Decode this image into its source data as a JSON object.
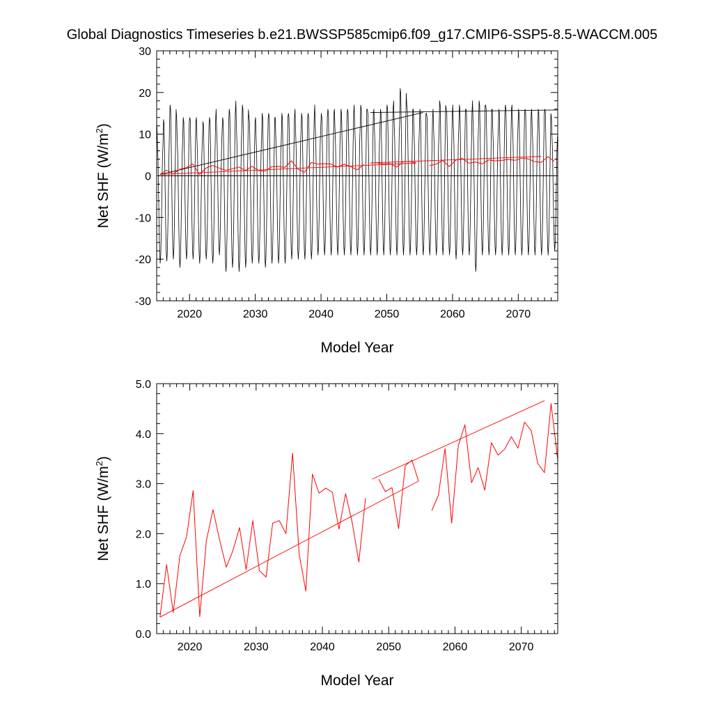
{
  "figure_title": "Global Diagnostics Timeseries b.e21.BWSSP585cmip6.f09_g17.CMIP6-SSP5-8.5-WACCM.005",
  "colors": {
    "monthly": "#000000",
    "annual": "#ff0000",
    "trend": "#ff0000",
    "zero_line": "#000000"
  },
  "chart_data": [
    {
      "type": "line",
      "xlabel": "Model Year",
      "ylabel": "Net SHF (W/m",
      "ylabel_sup": "2",
      "ylabel_close": ")",
      "xlim": [
        2015,
        2076
      ],
      "ylim": [
        -30,
        30
      ],
      "xticks": [
        2020,
        2030,
        2040,
        2050,
        2060,
        2070
      ],
      "yticks": [
        -30,
        -20,
        -10,
        0,
        10,
        20,
        30
      ],
      "ytick_labels": [
        "-30",
        "-20",
        "-10",
        "0",
        "10",
        "20",
        "30"
      ],
      "reference_line": {
        "y": 0
      },
      "monthly_series": {
        "start_year": 2015,
        "n_years": 61,
        "annual_max": [
          12,
          13.5,
          17,
          14,
          14,
          14,
          14,
          13,
          14,
          16,
          14,
          16,
          18,
          17,
          14,
          14,
          15,
          15,
          14,
          15,
          15,
          16,
          15,
          15,
          17,
          15,
          16,
          16,
          16,
          16,
          17,
          17,
          16,
          16,
          16,
          17,
          18,
          21,
          17,
          16,
          16,
          15,
          16,
          18,
          16,
          17,
          17,
          16,
          18,
          18,
          17,
          16,
          16,
          17,
          17,
          16,
          16,
          16,
          16,
          16,
          14
        ],
        "annual_min": [
          -21,
          -20.5,
          -20,
          -22,
          -20,
          -20,
          -21,
          -20,
          -21,
          -19,
          -23,
          -22,
          -23,
          -22,
          -21,
          -21,
          -22,
          -21,
          -21,
          -21,
          -20,
          -20,
          -20,
          -20,
          -19,
          -19,
          -19,
          -19,
          -19,
          -19,
          -19,
          -19,
          -19,
          -19,
          -19,
          -19,
          -19,
          -19,
          -19,
          -19,
          -19,
          -19,
          -19,
          -19,
          -19,
          -20,
          -19,
          -19,
          -23,
          -19,
          -19,
          -19,
          -19,
          -19,
          -19,
          -19,
          -19,
          -19,
          -19,
          -19,
          -18
        ]
      },
      "annual_series": {
        "x": [
          2015.5,
          2016.5,
          2017.5,
          2018.5,
          2019.5,
          2020.5,
          2021.5,
          2022.5,
          2023.5,
          2024.5,
          2025.5,
          2026.5,
          2027.5,
          2028.5,
          2029.5,
          2030.5,
          2031.5,
          2032.5,
          2033.5,
          2034.5,
          2035.5,
          2036.5,
          2037.5,
          2038.5,
          2039.5,
          2040.5,
          2041.5,
          2042.5,
          2043.5,
          2044.5,
          2045.5,
          2046.5,
          2047.5,
          2048.5,
          2049.5,
          2050.5,
          2051.5,
          2052.5,
          2053.5,
          2054.5,
          2055.5,
          2056.5,
          2057.5,
          2058.5,
          2059.5,
          2060.5,
          2061.5,
          2062.5,
          2063.5,
          2064.5,
          2065.5,
          2066.5,
          2067.5,
          2068.5,
          2069.5,
          2070.5,
          2071.5,
          2072.5,
          2073.5,
          2074.5,
          2075.5
        ],
        "y": [
          0.33,
          1.38,
          0.42,
          1.56,
          1.93,
          2.86,
          0.34,
          1.86,
          2.48,
          1.87,
          1.33,
          1.66,
          2.12,
          1.28,
          2.26,
          1.26,
          1.13,
          2.21,
          2.26,
          2.0,
          3.61,
          1.59,
          0.85,
          3.19,
          2.81,
          2.91,
          2.83,
          2.09,
          2.8,
          2.22,
          1.43,
          2.71,
          null,
          3.09,
          2.84,
          2.92,
          2.1,
          3.36,
          3.47,
          3.05,
          null,
          2.46,
          2.77,
          3.7,
          2.21,
          3.76,
          4.18,
          3.02,
          3.32,
          2.87,
          3.82,
          3.57,
          3.69,
          3.94,
          3.71,
          4.23,
          4.06,
          3.4,
          3.22,
          4.6,
          3.47
        ]
      },
      "trend_segments": [
        {
          "x": [
            2015.5,
            2055.5
          ],
          "y": [
            0.3,
            15.2
          ]
        },
        {
          "x": [
            2047.5,
            2076.0
          ],
          "y": [
            15.2,
            15.8
          ]
        }
      ],
      "trend_color_segments": [
        {
          "x": [
            2015.5,
            2054.5
          ],
          "y": [
            0.33,
            3.05
          ]
        },
        {
          "x": [
            2047.5,
            2073.5
          ],
          "y": [
            3.09,
            4.66
          ]
        }
      ]
    },
    {
      "type": "line",
      "xlabel": "Model Year",
      "ylabel": "Net SHF (W/m",
      "ylabel_sup": "2",
      "ylabel_close": ")",
      "xlim": [
        2015,
        2075.5
      ],
      "ylim": [
        0,
        5
      ],
      "xticks": [
        2020,
        2030,
        2040,
        2050,
        2060,
        2070
      ],
      "yticks": [
        0,
        1,
        2,
        3,
        4,
        5
      ],
      "ytick_labels": [
        "0.0",
        "1.0",
        "2.0",
        "3.0",
        "4.0",
        "5.0"
      ],
      "annual_series": {
        "x": [
          2015.5,
          2016.5,
          2017.5,
          2018.5,
          2019.5,
          2020.5,
          2021.5,
          2022.5,
          2023.5,
          2024.5,
          2025.5,
          2026.5,
          2027.5,
          2028.5,
          2029.5,
          2030.5,
          2031.5,
          2032.5,
          2033.5,
          2034.5,
          2035.5,
          2036.5,
          2037.5,
          2038.5,
          2039.5,
          2040.5,
          2041.5,
          2042.5,
          2043.5,
          2044.5,
          2045.5,
          2046.5,
          2047.5,
          2048.5,
          2049.5,
          2050.5,
          2051.5,
          2052.5,
          2053.5,
          2054.5,
          2055.5,
          2056.5,
          2057.5,
          2058.5,
          2059.5,
          2060.5,
          2061.5,
          2062.5,
          2063.5,
          2064.5,
          2065.5,
          2066.5,
          2067.5,
          2068.5,
          2069.5,
          2070.5,
          2071.5,
          2072.5,
          2073.5,
          2074.5,
          2075.5
        ],
        "y": [
          0.33,
          1.38,
          0.42,
          1.56,
          1.93,
          2.86,
          0.34,
          1.86,
          2.48,
          1.87,
          1.33,
          1.66,
          2.12,
          1.28,
          2.26,
          1.26,
          1.13,
          2.21,
          2.26,
          2.0,
          3.61,
          1.59,
          0.85,
          3.19,
          2.81,
          2.91,
          2.83,
          2.09,
          2.8,
          2.22,
          1.43,
          2.71,
          null,
          3.09,
          2.84,
          2.92,
          2.1,
          3.36,
          3.47,
          3.05,
          null,
          2.46,
          2.77,
          3.7,
          2.21,
          3.76,
          4.18,
          3.02,
          3.32,
          2.87,
          3.82,
          3.57,
          3.69,
          3.94,
          3.71,
          4.23,
          4.06,
          3.4,
          3.22,
          4.6,
          3.47
        ]
      },
      "trend_segments": [
        {
          "x": [
            2015.5,
            2054.5
          ],
          "y": [
            0.33,
            3.05
          ]
        },
        {
          "x": [
            2047.5,
            2073.5
          ],
          "y": [
            3.09,
            4.66
          ]
        }
      ]
    }
  ]
}
